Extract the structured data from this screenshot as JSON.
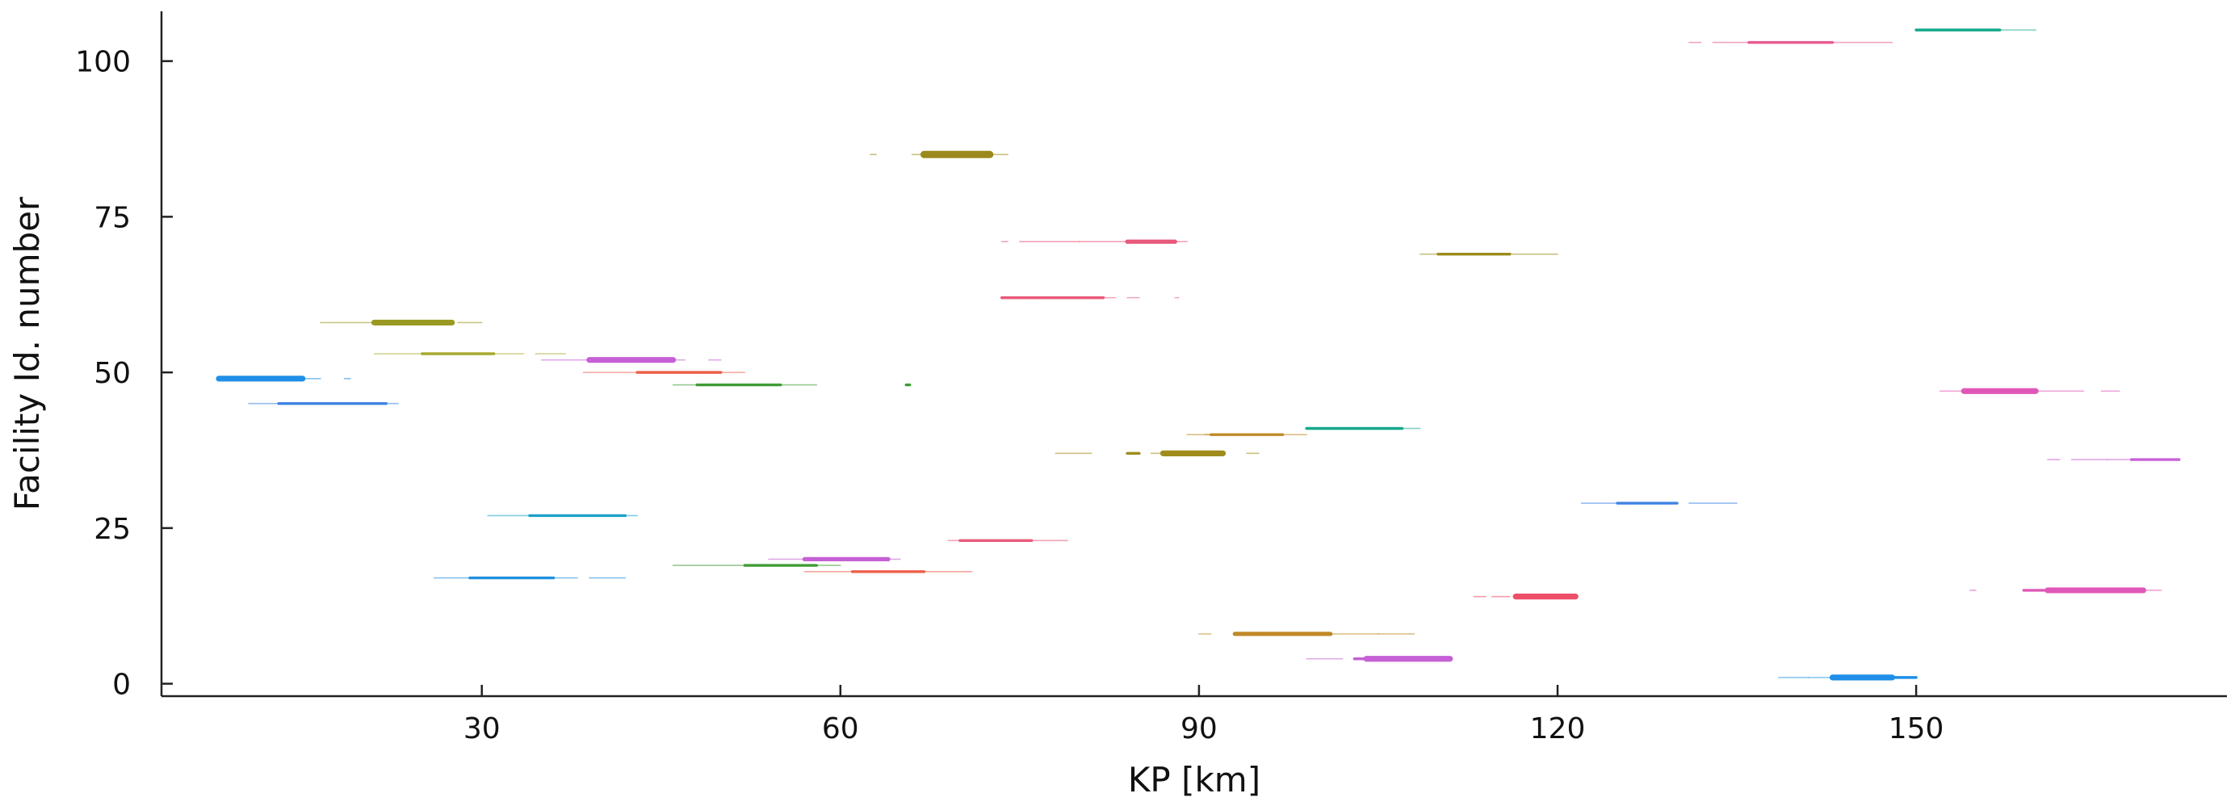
{
  "chart_data": {
    "type": "line",
    "title": "",
    "xlabel": "KP [km]",
    "ylabel": "Facility Id. number",
    "xlim": [
      3.2,
      176
    ],
    "ylim": [
      -2,
      108
    ],
    "xticks": [
      30,
      60,
      90,
      120,
      150
    ],
    "yticks": [
      0,
      25,
      50,
      75,
      100
    ],
    "grid": false,
    "legend": "none",
    "series": [
      {
        "y": 49,
        "color": "#1f8fe8",
        "segments": [
          [
            8,
            15,
            4
          ],
          [
            15,
            16.5,
            1
          ],
          [
            18.5,
            19,
            1
          ]
        ]
      },
      {
        "y": 45,
        "color": "#3f83e3",
        "segments": [
          [
            10.5,
            13,
            1
          ],
          [
            13,
            22,
            2
          ],
          [
            22,
            23,
            1
          ]
        ]
      },
      {
        "y": 58,
        "color": "#9a9a22",
        "segments": [
          [
            16.5,
            21,
            1
          ],
          [
            21,
            27.5,
            4
          ],
          [
            28,
            30,
            1
          ]
        ]
      },
      {
        "y": 53,
        "color": "#a8a830",
        "segments": [
          [
            21,
            25,
            1
          ],
          [
            25,
            31,
            2
          ],
          [
            31,
            33.5,
            1
          ],
          [
            34.5,
            37,
            1
          ]
        ]
      },
      {
        "y": 52,
        "color": "#c660d6",
        "segments": [
          [
            35,
            39,
            1
          ],
          [
            39,
            46,
            4
          ],
          [
            46,
            47,
            1
          ],
          [
            49,
            50,
            1
          ]
        ]
      },
      {
        "y": 50,
        "color": "#ee5f4a",
        "segments": [
          [
            38.5,
            43,
            1
          ],
          [
            43,
            50,
            2
          ],
          [
            50,
            52,
            1
          ]
        ]
      },
      {
        "y": 48,
        "color": "#3e9c34",
        "segments": [
          [
            46,
            48,
            1
          ],
          [
            48,
            55,
            2
          ],
          [
            55,
            58,
            1
          ],
          [
            65.5,
            65.8,
            2
          ]
        ]
      },
      {
        "y": 27,
        "color": "#1fa0c8",
        "segments": [
          [
            30.5,
            34,
            1
          ],
          [
            34,
            42,
            2
          ],
          [
            42,
            43,
            1
          ]
        ]
      },
      {
        "y": 17,
        "color": "#2090dd",
        "segments": [
          [
            26,
            29,
            1
          ],
          [
            29,
            36,
            2
          ],
          [
            36,
            38,
            1
          ],
          [
            39,
            42,
            1
          ]
        ]
      },
      {
        "y": 19,
        "color": "#3e9c34",
        "segments": [
          [
            46,
            52,
            1
          ],
          [
            52,
            58,
            2
          ],
          [
            58,
            60,
            1
          ]
        ]
      },
      {
        "y": 20,
        "color": "#c660d6",
        "segments": [
          [
            54,
            57,
            1
          ],
          [
            57,
            64,
            3
          ],
          [
            64,
            65,
            1
          ]
        ]
      },
      {
        "y": 18,
        "color": "#ee5f4a",
        "segments": [
          [
            57,
            61,
            1
          ],
          [
            61,
            67,
            2
          ],
          [
            67,
            71,
            1
          ]
        ]
      },
      {
        "y": 23,
        "color": "#e85a7a",
        "segments": [
          [
            69,
            70,
            1
          ],
          [
            70,
            76,
            2
          ],
          [
            76,
            79,
            1
          ]
        ]
      },
      {
        "y": 85,
        "color": "#9a8a1c",
        "segments": [
          [
            62.5,
            63,
            1
          ],
          [
            66,
            67,
            1
          ],
          [
            67,
            72.5,
            5
          ],
          [
            72.5,
            74,
            1
          ]
        ]
      },
      {
        "y": 71,
        "color": "#e85a7a",
        "segments": [
          [
            73.5,
            74,
            1
          ],
          [
            75,
            80,
            1
          ],
          [
            80,
            84,
            1
          ],
          [
            84,
            88,
            3
          ],
          [
            88,
            89,
            1
          ]
        ]
      },
      {
        "y": 62,
        "color": "#e85a7a",
        "segments": [
          [
            73.5,
            76,
            2
          ],
          [
            76,
            82,
            2
          ],
          [
            82,
            83,
            1
          ],
          [
            84,
            85,
            1
          ],
          [
            88,
            88.3,
            1
          ]
        ]
      },
      {
        "y": 37,
        "color": "#a08c1c",
        "segments": [
          [
            78,
            81,
            1
          ],
          [
            84,
            85,
            2
          ],
          [
            86,
            87,
            1
          ],
          [
            87,
            92,
            4
          ],
          [
            94,
            95,
            1
          ]
        ]
      },
      {
        "y": 40,
        "color": "#c08a28",
        "segments": [
          [
            89,
            91,
            1
          ],
          [
            91,
            97,
            2
          ],
          [
            97,
            99,
            1
          ],
          [
            90.5,
            91,
            1
          ]
        ]
      },
      {
        "y": 41,
        "color": "#14a88a",
        "segments": [
          [
            99,
            107,
            2
          ],
          [
            107,
            108.5,
            1
          ]
        ]
      },
      {
        "y": 69,
        "color": "#9a8a1c",
        "segments": [
          [
            108.5,
            110,
            1
          ],
          [
            110,
            116,
            2
          ],
          [
            116,
            120,
            1
          ]
        ]
      },
      {
        "y": 8,
        "color": "#c08a28",
        "segments": [
          [
            90,
            91,
            1
          ],
          [
            93,
            95,
            3
          ],
          [
            95,
            101,
            3
          ],
          [
            101,
            105,
            1
          ],
          [
            105,
            108,
            1
          ]
        ]
      },
      {
        "y": 4,
        "color": "#c660d6",
        "segments": [
          [
            99,
            102,
            1
          ],
          [
            103,
            104,
            2
          ],
          [
            104,
            111,
            4
          ]
        ]
      },
      {
        "y": 14,
        "color": "#ee4f6a",
        "segments": [
          [
            113,
            114,
            1
          ],
          [
            114.5,
            116,
            1
          ],
          [
            116.5,
            121.5,
            4
          ]
        ]
      },
      {
        "y": 29,
        "color": "#3f83e3",
        "segments": [
          [
            122,
            125,
            1
          ],
          [
            125,
            130,
            2
          ],
          [
            131,
            135,
            1
          ]
        ]
      },
      {
        "y": 103,
        "color": "#e85a90",
        "segments": [
          [
            131,
            132,
            1
          ],
          [
            133,
            136,
            1
          ],
          [
            136,
            143,
            2
          ],
          [
            143,
            148,
            1
          ]
        ]
      },
      {
        "y": 105,
        "color": "#14a88a",
        "segments": [
          [
            150,
            157,
            2
          ],
          [
            157,
            160,
            1
          ]
        ]
      },
      {
        "y": 47,
        "color": "#df58b8",
        "segments": [
          [
            152,
            154,
            1
          ],
          [
            154,
            160,
            4
          ],
          [
            160,
            164,
            1
          ],
          [
            165.5,
            167,
            1
          ]
        ]
      },
      {
        "y": 36,
        "color": "#c660d6",
        "segments": [
          [
            161,
            162,
            1
          ],
          [
            163,
            166,
            1
          ],
          [
            166,
            168,
            1
          ],
          [
            168,
            172,
            2
          ]
        ]
      },
      {
        "y": 15,
        "color": "#df58b8",
        "segments": [
          [
            154.5,
            155,
            1
          ],
          [
            159,
            161,
            2
          ],
          [
            161,
            169,
            4
          ],
          [
            169,
            170.5,
            1
          ]
        ]
      },
      {
        "y": 1,
        "color": "#1f8fe8",
        "segments": [
          [
            138.5,
            141,
            1
          ],
          [
            141,
            143,
            1
          ],
          [
            143,
            148,
            4
          ],
          [
            148,
            150,
            2
          ]
        ]
      }
    ]
  }
}
